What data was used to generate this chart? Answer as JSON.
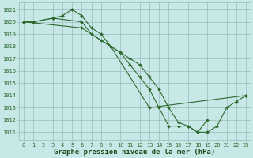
{
  "background_color": "#c8e8e8",
  "grid_color": "#99bbbb",
  "line_color": "#2d6a2d",
  "marker_color": "#2d6a2d",
  "xlabel": "Graphe pression niveau de la mer (hPa)",
  "xlabel_fontsize": 6.5,
  "xlabel_color": "#1a4a1a",
  "ylabel_ticks": [
    1011,
    1012,
    1013,
    1014,
    1015,
    1016,
    1017,
    1018,
    1019,
    1020,
    1021
  ],
  "xlabel_ticks": [
    0,
    1,
    2,
    3,
    4,
    5,
    6,
    7,
    8,
    9,
    10,
    11,
    12,
    13,
    14,
    15,
    16,
    17,
    18,
    19,
    20,
    21,
    22,
    23
  ],
  "xlim": [
    -0.5,
    23.5
  ],
  "ylim": [
    1010.4,
    1021.6
  ],
  "series": [
    {
      "x": [
        0,
        1,
        3,
        4,
        5,
        6,
        7,
        8,
        9,
        13,
        23
      ],
      "y": [
        1020,
        1020,
        1020.3,
        1020.5,
        1021,
        1020.5,
        1019.5,
        1019,
        1018,
        1013,
        1014
      ]
    },
    {
      "x": [
        0,
        1,
        3,
        6,
        7,
        10,
        11,
        12,
        13,
        14,
        15,
        16,
        17,
        18,
        19
      ],
      "y": [
        1020,
        1020,
        1020.3,
        1020,
        1019,
        1017.5,
        1016.5,
        1015.5,
        1014.5,
        1013,
        1011.5,
        1011.5,
        1011.5,
        1011,
        1012
      ]
    },
    {
      "x": [
        0,
        6,
        8,
        9,
        10,
        11,
        12,
        13,
        14,
        15,
        16,
        17,
        18,
        19,
        20,
        21,
        22,
        23
      ],
      "y": [
        1020,
        1019.5,
        1018.5,
        1018,
        1017.5,
        1017,
        1016.5,
        1015.5,
        1014.5,
        1013,
        1011.8,
        1011.5,
        1011,
        1011,
        1011.5,
        1013,
        1013.5,
        1014
      ]
    }
  ]
}
